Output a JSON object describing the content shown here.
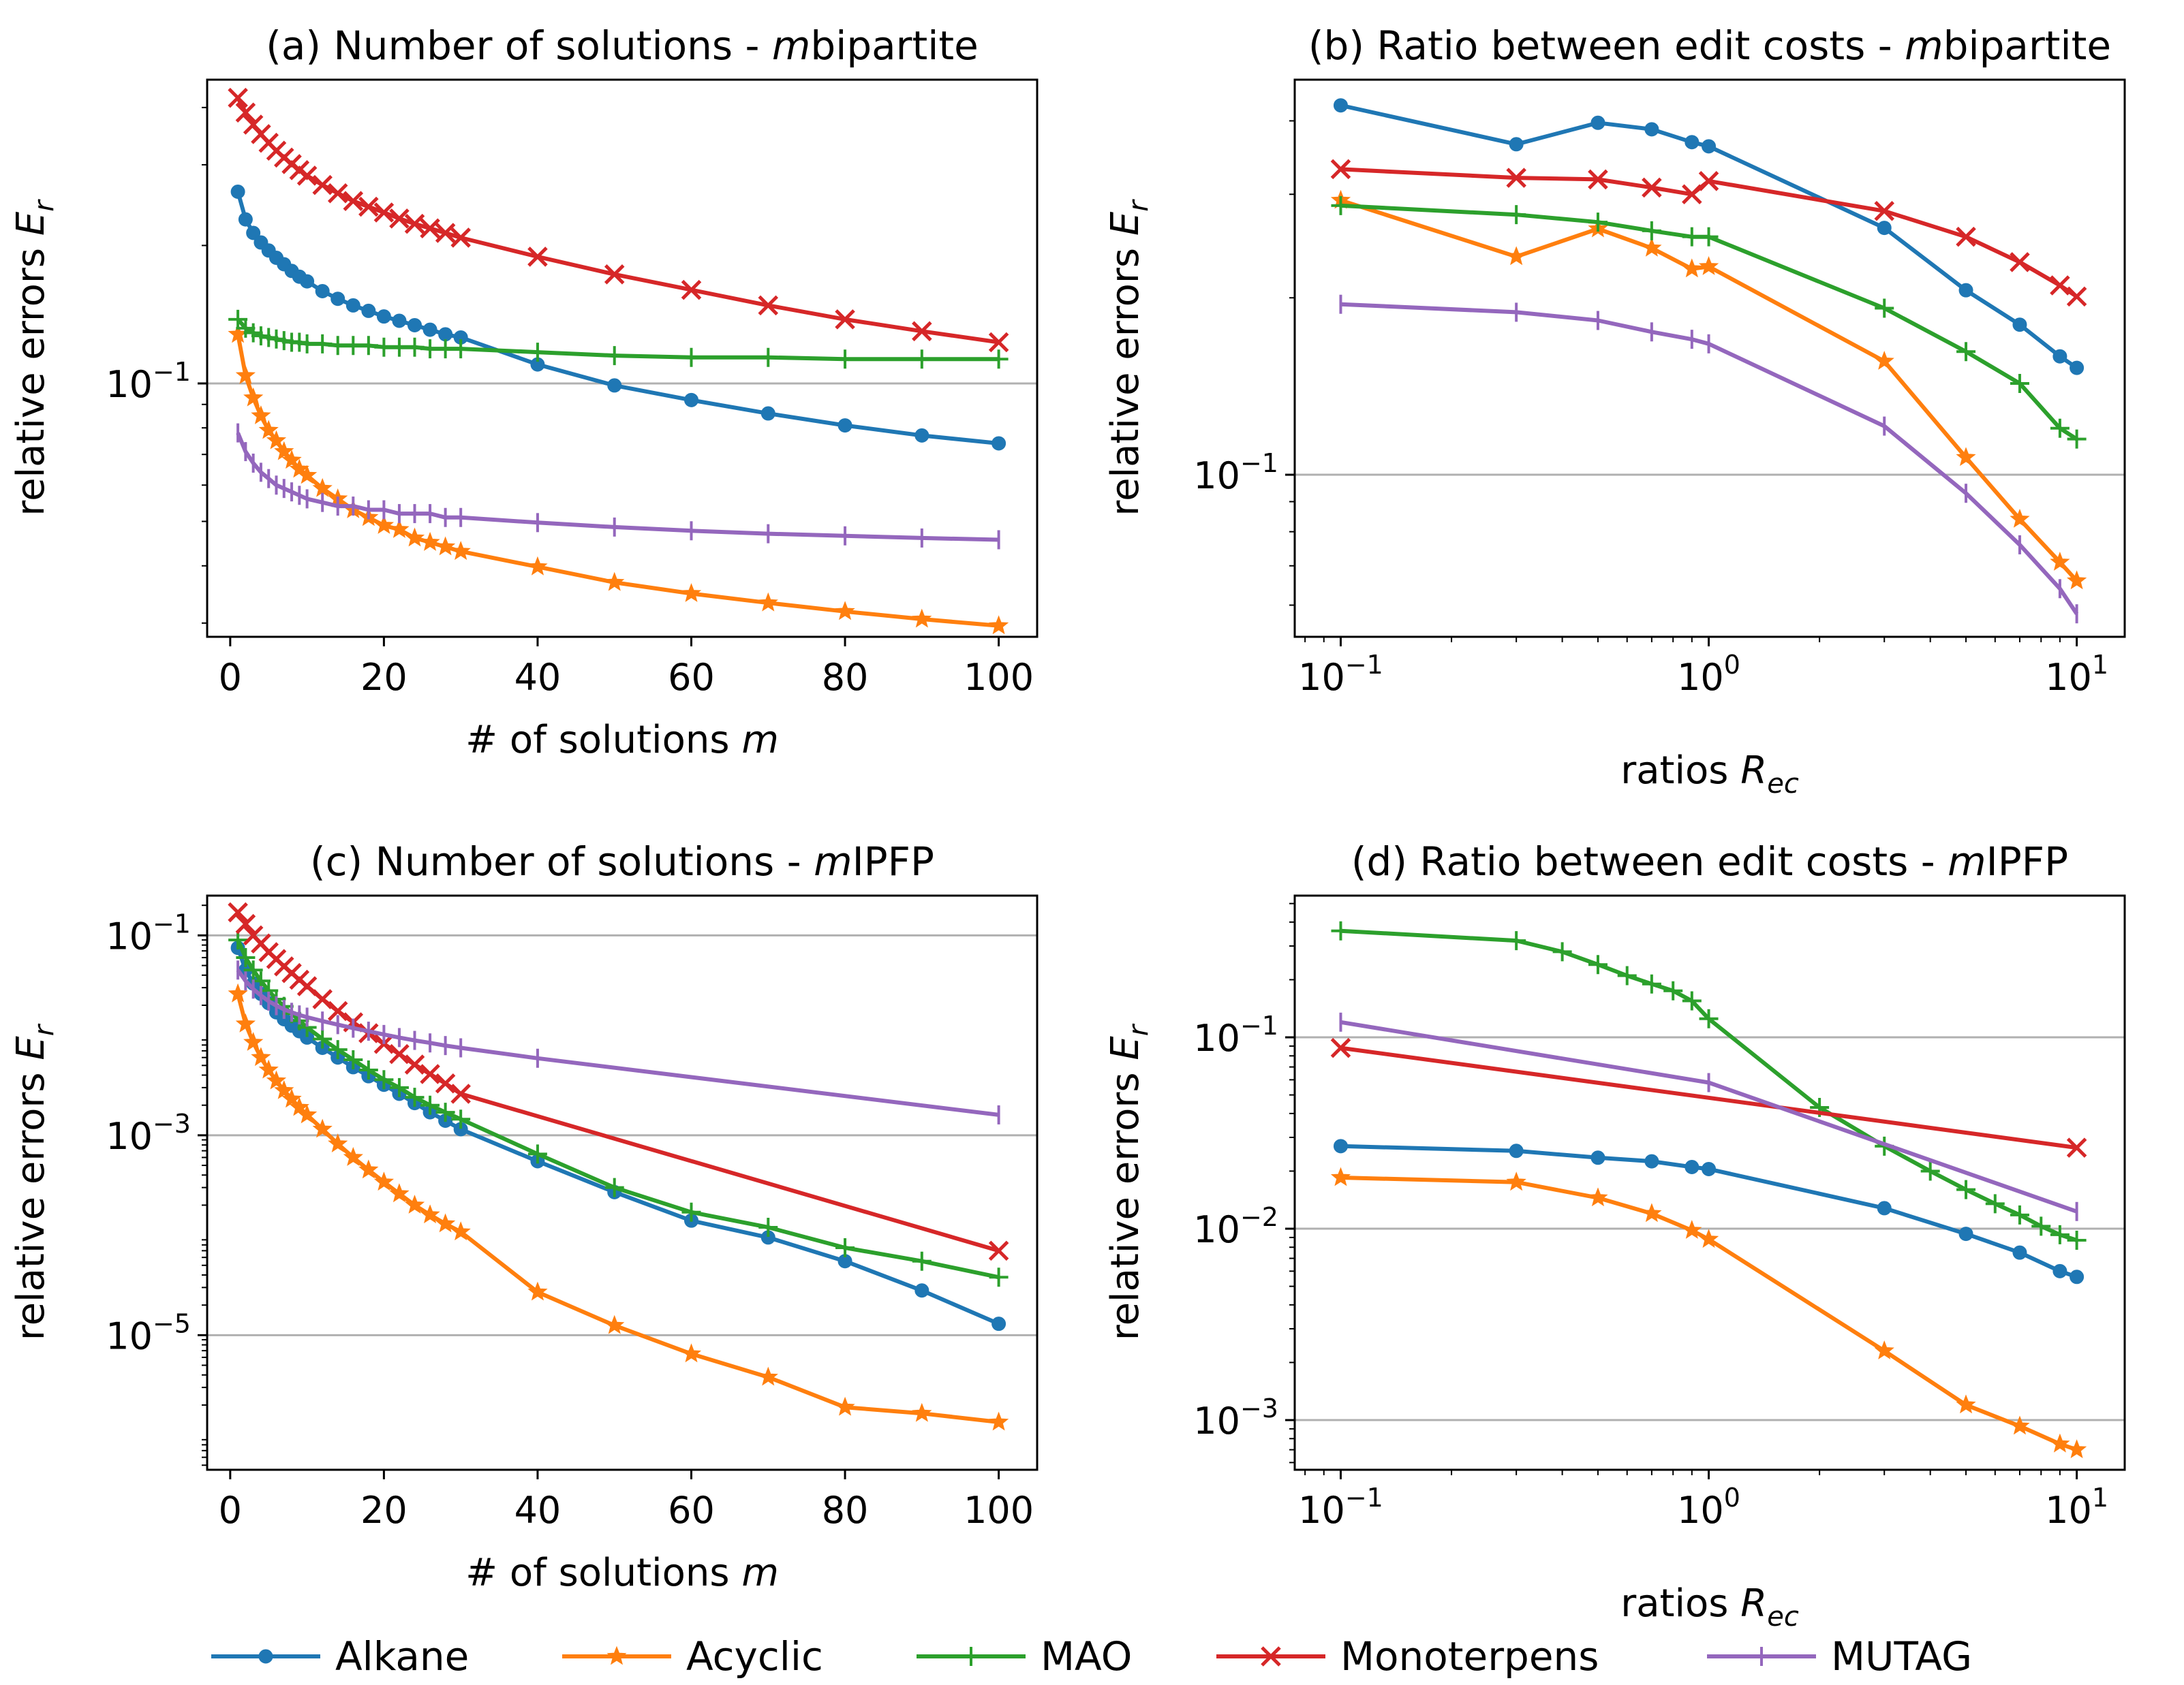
{
  "chart_data": [
    {
      "id": "a",
      "type": "line",
      "title_prefix": "(a) Number of solutions - ",
      "title_italic": "m",
      "title_suffix": "bipartite",
      "xlabel_prefix": "# of solutions ",
      "xlabel_italic": "m",
      "ylabel": "relative errors E_r",
      "xscale": "linear",
      "yscale": "log",
      "xlim": [
        -3,
        105
      ],
      "ylim": [
        0.028,
        0.46
      ],
      "xticks": [
        0,
        20,
        40,
        60,
        80,
        100
      ],
      "xtick_labels": [
        "0",
        "20",
        "40",
        "60",
        "80",
        "100"
      ],
      "yticks": [
        0.1
      ],
      "ytick_labels": [
        "10^-1"
      ],
      "hlines": [
        0.1
      ],
      "series": [
        {
          "name": "Alkane",
          "x": [
            1,
            2,
            3,
            4,
            5,
            6,
            7,
            8,
            9,
            10,
            12,
            14,
            16,
            18,
            20,
            22,
            24,
            26,
            28,
            30,
            40,
            50,
            60,
            70,
            80,
            90,
            100
          ],
          "values": [
            0.262,
            0.228,
            0.213,
            0.203,
            0.195,
            0.188,
            0.182,
            0.176,
            0.171,
            0.167,
            0.159,
            0.153,
            0.148,
            0.144,
            0.14,
            0.137,
            0.134,
            0.131,
            0.128,
            0.126,
            0.11,
            0.099,
            0.092,
            0.086,
            0.081,
            0.077,
            0.074
          ]
        },
        {
          "name": "Acyclic",
          "x": [
            1,
            2,
            3,
            4,
            5,
            6,
            7,
            8,
            9,
            10,
            12,
            14,
            16,
            18,
            20,
            22,
            24,
            26,
            28,
            30,
            40,
            50,
            60,
            70,
            80,
            90,
            100
          ],
          "values": [
            0.128,
            0.104,
            0.093,
            0.085,
            0.079,
            0.075,
            0.071,
            0.068,
            0.065,
            0.063,
            0.059,
            0.056,
            0.053,
            0.051,
            0.049,
            0.048,
            0.046,
            0.045,
            0.044,
            0.043,
            0.0398,
            0.0368,
            0.0348,
            0.0332,
            0.0318,
            0.0306,
            0.0296
          ]
        },
        {
          "name": "MAO",
          "x": [
            1,
            2,
            3,
            4,
            5,
            6,
            7,
            8,
            9,
            10,
            12,
            14,
            16,
            18,
            20,
            22,
            24,
            26,
            28,
            30,
            40,
            50,
            60,
            70,
            80,
            90,
            100
          ],
          "values": [
            0.138,
            0.132,
            0.129,
            0.127,
            0.126,
            0.125,
            0.124,
            0.123,
            0.123,
            0.122,
            0.122,
            0.121,
            0.121,
            0.121,
            0.12,
            0.12,
            0.12,
            0.119,
            0.119,
            0.119,
            0.117,
            0.115,
            0.114,
            0.114,
            0.113,
            0.113,
            0.113
          ]
        },
        {
          "name": "Monoterpens",
          "x": [
            1,
            2,
            3,
            4,
            5,
            6,
            7,
            8,
            9,
            10,
            12,
            14,
            16,
            18,
            20,
            22,
            24,
            26,
            28,
            30,
            40,
            50,
            60,
            70,
            80,
            90,
            100
          ],
          "values": [
            0.42,
            0.39,
            0.367,
            0.35,
            0.335,
            0.322,
            0.311,
            0.301,
            0.292,
            0.284,
            0.271,
            0.26,
            0.25,
            0.243,
            0.236,
            0.229,
            0.223,
            0.218,
            0.213,
            0.208,
            0.189,
            0.173,
            0.16,
            0.148,
            0.138,
            0.13,
            0.123
          ]
        },
        {
          "name": "MUTAG",
          "x": [
            1,
            2,
            3,
            4,
            5,
            6,
            7,
            8,
            9,
            10,
            12,
            14,
            16,
            18,
            20,
            22,
            24,
            26,
            28,
            30,
            40,
            50,
            60,
            70,
            80,
            90,
            100
          ],
          "values": [
            0.078,
            0.071,
            0.067,
            0.064,
            0.062,
            0.06,
            0.059,
            0.058,
            0.057,
            0.056,
            0.055,
            0.054,
            0.054,
            0.053,
            0.053,
            0.052,
            0.052,
            0.052,
            0.051,
            0.051,
            0.0497,
            0.0486,
            0.0477,
            0.047,
            0.0465,
            0.046,
            0.0456
          ]
        }
      ]
    },
    {
      "id": "b",
      "type": "line",
      "title_prefix": "(b) Ratio between edit costs - ",
      "title_italic": "m",
      "title_suffix": "bipartite",
      "xlabel_prefix": "ratios ",
      "xlabel_italic": "R_ec",
      "ylabel": "relative errors E_r",
      "xscale": "log",
      "yscale": "log",
      "xlim": [
        0.075,
        13.5
      ],
      "ylim": [
        0.053,
        0.47
      ],
      "xticks": [
        0.1,
        1,
        10
      ],
      "xtick_labels": [
        "10^-1",
        "10^0",
        "10^1"
      ],
      "yticks": [
        0.1
      ],
      "ytick_labels": [
        "10^-1"
      ],
      "hlines": [
        0.1
      ],
      "series": [
        {
          "name": "Alkane",
          "x": [
            0.1,
            0.3,
            0.5,
            0.7,
            0.9,
            1,
            3,
            5,
            7,
            9,
            10
          ],
          "values": [
            0.425,
            0.365,
            0.397,
            0.387,
            0.368,
            0.362,
            0.263,
            0.206,
            0.18,
            0.159,
            0.152
          ]
        },
        {
          "name": "Acyclic",
          "x": [
            0.1,
            0.3,
            0.5,
            0.7,
            0.9,
            1,
            3,
            5,
            7,
            9,
            10
          ],
          "values": [
            0.293,
            0.235,
            0.262,
            0.243,
            0.224,
            0.226,
            0.156,
            0.107,
            0.084,
            0.071,
            0.066
          ]
        },
        {
          "name": "MAO",
          "x": [
            0.1,
            0.3,
            0.5,
            0.7,
            0.9,
            1,
            3,
            5,
            7,
            9,
            10
          ],
          "values": [
            0.287,
            0.277,
            0.269,
            0.26,
            0.254,
            0.254,
            0.192,
            0.162,
            0.143,
            0.12,
            0.115
          ]
        },
        {
          "name": "Monoterpens",
          "x": [
            0.1,
            0.3,
            0.5,
            0.7,
            0.9,
            1,
            3,
            5,
            7,
            9,
            10
          ],
          "values": [
            0.331,
            0.32,
            0.318,
            0.308,
            0.3,
            0.316,
            0.281,
            0.254,
            0.23,
            0.21,
            0.201
          ]
        },
        {
          "name": "MUTAG",
          "x": [
            0.1,
            0.3,
            0.5,
            0.7,
            0.9,
            1,
            3,
            5,
            7,
            9,
            10
          ],
          "values": [
            0.195,
            0.189,
            0.183,
            0.175,
            0.17,
            0.167,
            0.121,
            0.093,
            0.076,
            0.064,
            0.058
          ]
        }
      ]
    },
    {
      "id": "c",
      "type": "line",
      "title_prefix": "(c) Number of solutions - ",
      "title_italic": "m",
      "title_suffix": "IPFP",
      "xlabel_prefix": "# of solutions ",
      "xlabel_italic": "m",
      "ylabel": "relative errors E_r",
      "xscale": "linear",
      "yscale": "log",
      "xlim": [
        -3,
        105
      ],
      "ylim": [
        4.5e-07,
        0.25
      ],
      "xticks": [
        0,
        20,
        40,
        60,
        80,
        100
      ],
      "xtick_labels": [
        "0",
        "20",
        "40",
        "60",
        "80",
        "100"
      ],
      "yticks": [
        1e-05,
        0.001,
        0.1
      ],
      "ytick_labels": [
        "10^-5",
        "10^-3",
        "10^-1"
      ],
      "hlines": [
        1e-05,
        0.001,
        0.1
      ],
      "series": [
        {
          "name": "Alkane",
          "x": [
            1,
            2,
            3,
            4,
            5,
            6,
            7,
            8,
            9,
            10,
            12,
            14,
            16,
            18,
            20,
            22,
            24,
            26,
            28,
            30,
            40,
            50,
            60,
            70,
            80,
            90,
            100
          ],
          "values": [
            0.075,
            0.045,
            0.033,
            0.026,
            0.021,
            0.017,
            0.0145,
            0.0125,
            0.011,
            0.0095,
            0.0075,
            0.006,
            0.0048,
            0.0039,
            0.0032,
            0.0026,
            0.0021,
            0.0017,
            0.0014,
            0.00115,
            0.00055,
            0.00027,
            0.00014,
            9.5e-05,
            5.5e-05,
            2.8e-05,
            1.3e-05
          ]
        },
        {
          "name": "Acyclic",
          "x": [
            1,
            2,
            3,
            4,
            5,
            6,
            7,
            8,
            9,
            10,
            12,
            14,
            16,
            18,
            20,
            22,
            24,
            26,
            28,
            30,
            40,
            50,
            60,
            70,
            80,
            90,
            100
          ],
          "values": [
            0.026,
            0.013,
            0.0085,
            0.006,
            0.0045,
            0.0035,
            0.0028,
            0.0023,
            0.0019,
            0.0016,
            0.00115,
            0.00082,
            0.0006,
            0.00045,
            0.00034,
            0.00026,
            0.0002,
            0.00016,
            0.00013,
            0.000108,
            2.7e-05,
            1.25e-05,
            6.5e-06,
            3.8e-06,
            1.9e-06,
            1.65e-06,
            1.35e-06
          ]
        },
        {
          "name": "MAO",
          "x": [
            1,
            2,
            3,
            4,
            5,
            6,
            7,
            8,
            9,
            10,
            12,
            14,
            16,
            18,
            20,
            22,
            24,
            26,
            28,
            30,
            40,
            50,
            60,
            70,
            80,
            90,
            100
          ],
          "values": [
            0.09,
            0.06,
            0.045,
            0.035,
            0.028,
            0.023,
            0.0195,
            0.0165,
            0.014,
            0.012,
            0.0092,
            0.0072,
            0.0057,
            0.0045,
            0.0036,
            0.003,
            0.0024,
            0.002,
            0.0017,
            0.00145,
            0.00065,
            0.0003,
            0.00017,
            0.00012,
            7.5e-05,
            5.5e-05,
            3.8e-05
          ]
        },
        {
          "name": "Monoterpens",
          "x": [
            1,
            2,
            3,
            4,
            5,
            6,
            7,
            8,
            9,
            10,
            12,
            14,
            16,
            18,
            20,
            22,
            24,
            26,
            28,
            30,
            100
          ],
          "values": [
            0.17,
            0.13,
            0.1,
            0.083,
            0.068,
            0.058,
            0.049,
            0.042,
            0.036,
            0.031,
            0.023,
            0.0175,
            0.0135,
            0.0105,
            0.0082,
            0.0065,
            0.0051,
            0.0041,
            0.0033,
            0.0026,
            7e-05
          ]
        },
        {
          "name": "MUTAG",
          "x": [
            1,
            2,
            3,
            4,
            5,
            6,
            7,
            8,
            9,
            10,
            12,
            14,
            16,
            18,
            20,
            22,
            24,
            26,
            28,
            30,
            40,
            100
          ],
          "values": [
            0.045,
            0.035,
            0.029,
            0.025,
            0.022,
            0.0198,
            0.0182,
            0.017,
            0.016,
            0.0152,
            0.0139,
            0.0128,
            0.0118,
            0.011,
            0.0102,
            0.0095,
            0.0089,
            0.0084,
            0.0079,
            0.0075,
            0.0059,
            0.0016
          ]
        }
      ]
    },
    {
      "id": "d",
      "type": "line",
      "title_prefix": "(d) Ratio between edit costs - ",
      "title_italic": "m",
      "title_suffix": "IPFP",
      "xlabel_prefix": "ratios ",
      "xlabel_italic": "R_ec",
      "ylabel": "relative errors E_r",
      "xscale": "log",
      "yscale": "log",
      "xlim": [
        0.075,
        13.5
      ],
      "ylim": [
        0.00055,
        0.55
      ],
      "xticks": [
        0.1,
        1,
        10
      ],
      "xtick_labels": [
        "10^-1",
        "10^0",
        "10^1"
      ],
      "yticks": [
        0.001,
        0.01,
        0.1
      ],
      "ytick_labels": [
        "10^-3",
        "10^-2",
        "10^-1"
      ],
      "hlines": [
        0.001,
        0.01,
        0.1
      ],
      "series": [
        {
          "name": "Alkane",
          "x": [
            0.1,
            0.3,
            0.5,
            0.7,
            0.9,
            1,
            3,
            5,
            7,
            9,
            10
          ],
          "values": [
            0.027,
            0.0255,
            0.0235,
            0.0225,
            0.021,
            0.0205,
            0.0128,
            0.0094,
            0.0075,
            0.006,
            0.0056
          ]
        },
        {
          "name": "Acyclic",
          "x": [
            0.1,
            0.3,
            0.5,
            0.7,
            0.9,
            1,
            3,
            5,
            7,
            9,
            10
          ],
          "values": [
            0.0185,
            0.0175,
            0.0145,
            0.012,
            0.0098,
            0.0088,
            0.0023,
            0.0012,
            0.00093,
            0.00075,
            0.0007
          ]
        },
        {
          "name": "MAO",
          "x": [
            0.1,
            0.3,
            0.4,
            0.5,
            0.6,
            0.7,
            0.8,
            0.9,
            1,
            2,
            3,
            4,
            5,
            6,
            7,
            8,
            9,
            10
          ],
          "values": [
            0.36,
            0.32,
            0.28,
            0.24,
            0.21,
            0.19,
            0.175,
            0.155,
            0.125,
            0.043,
            0.027,
            0.02,
            0.016,
            0.0135,
            0.0118,
            0.0103,
            0.0093,
            0.0087
          ]
        },
        {
          "name": "Monoterpens",
          "x": [
            0.1,
            10
          ],
          "values": [
            0.088,
            0.0265
          ]
        },
        {
          "name": "MUTAG",
          "x": [
            0.1,
            1,
            10
          ],
          "values": [
            0.12,
            0.058,
            0.0123
          ]
        }
      ]
    }
  ],
  "legend": [
    {
      "name": "Alkane",
      "color": "#1f77b4",
      "marker": "circle"
    },
    {
      "name": "Acyclic",
      "color": "#ff7f0e",
      "marker": "star"
    },
    {
      "name": "MAO",
      "color": "#2ca02c",
      "marker": "plus"
    },
    {
      "name": "Monoterpens",
      "color": "#d62728",
      "marker": "x"
    },
    {
      "name": "MUTAG",
      "color": "#9467bd",
      "marker": "vline"
    }
  ]
}
